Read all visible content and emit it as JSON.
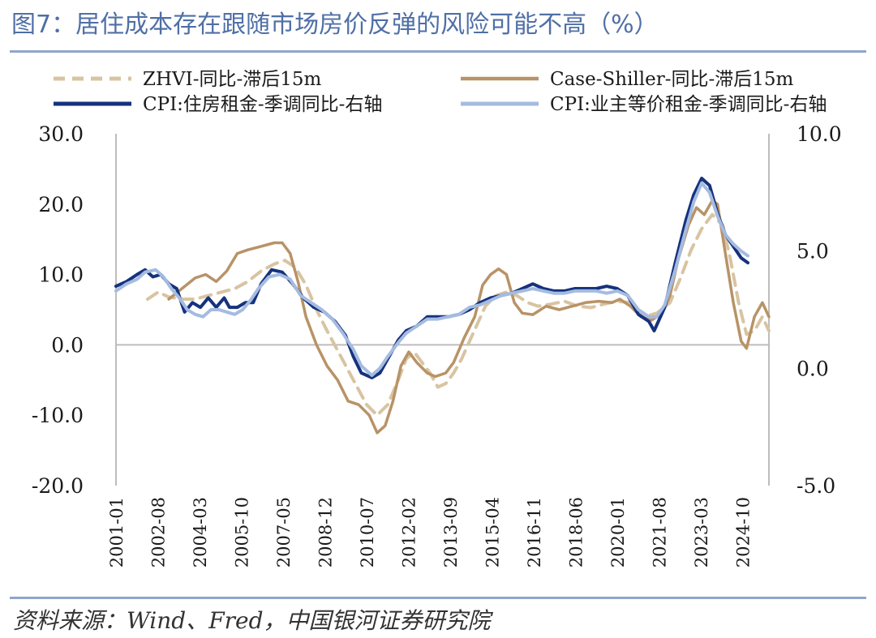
{
  "header": {
    "title": "图7：居住成本存在跟随市场房价反弹的风险可能不高（%）"
  },
  "footer": {
    "source": "资料来源：Wind、Fred，中国银河证券研究院"
  },
  "colors": {
    "title": "#4f6fa6",
    "rule": "#8fa6cc"
  },
  "chart_data": {
    "type": "line",
    "title": "居住成本存在跟随市场房价反弹的风险可能不高（%）",
    "x_ticks": [
      "2001-01",
      "2002-08",
      "2004-03",
      "2005-10",
      "2007-05",
      "2008-12",
      "2010-07",
      "2012-02",
      "2013-09",
      "2015-04",
      "2016-11",
      "2018-06",
      "2020-01",
      "2021-08",
      "2023-03",
      "2024-10"
    ],
    "x_start": 2001.0,
    "x_end": 2025.75,
    "y_left": {
      "min": -20,
      "max": 30,
      "ticks": [
        -20,
        -10,
        0,
        10,
        20,
        30
      ],
      "tick_labels": [
        "-20.0",
        "-10.0",
        "0.0",
        "10.0",
        "20.0",
        "30.0"
      ]
    },
    "y_right": {
      "min": -5,
      "max": 10,
      "ticks": [
        -5,
        0,
        5,
        10
      ],
      "tick_labels": [
        "-5.0",
        "0.0",
        "5.0",
        "10.0"
      ]
    },
    "legend_position": "top",
    "series": [
      {
        "name": "ZHVI-同比-滞后15m",
        "axis": "left",
        "color": "#d8c4a2",
        "dash": "14,9",
        "width": 4,
        "points": [
          [
            2002.2,
            6.5
          ],
          [
            2002.6,
            7.5
          ],
          [
            2003.0,
            6.8
          ],
          [
            2003.5,
            6.5
          ],
          [
            2004.0,
            6.5
          ],
          [
            2004.5,
            7.0
          ],
          [
            2005.0,
            7.5
          ],
          [
            2005.5,
            8.0
          ],
          [
            2006.0,
            9.0
          ],
          [
            2006.5,
            10.5
          ],
          [
            2007.0,
            11.5
          ],
          [
            2007.4,
            12.0
          ],
          [
            2007.8,
            11.0
          ],
          [
            2008.2,
            8.5
          ],
          [
            2008.6,
            5.0
          ],
          [
            2009.0,
            2.0
          ],
          [
            2009.5,
            -1.5
          ],
          [
            2010.0,
            -5.0
          ],
          [
            2010.5,
            -8.5
          ],
          [
            2010.9,
            -10.0
          ],
          [
            2011.3,
            -8.5
          ],
          [
            2011.7,
            -5.0
          ],
          [
            2012.0,
            -2.0
          ],
          [
            2012.3,
            -1.0
          ],
          [
            2012.6,
            -2.5
          ],
          [
            2012.9,
            -4.0
          ],
          [
            2013.2,
            -6.0
          ],
          [
            2013.5,
            -5.5
          ],
          [
            2013.8,
            -4.0
          ],
          [
            2014.1,
            -2.0
          ],
          [
            2014.4,
            0.5
          ],
          [
            2014.7,
            3.0
          ],
          [
            2015.0,
            5.5
          ],
          [
            2015.4,
            7.0
          ],
          [
            2015.8,
            7.5
          ],
          [
            2016.2,
            7.0
          ],
          [
            2016.6,
            6.0
          ],
          [
            2017.0,
            5.5
          ],
          [
            2017.5,
            5.8
          ],
          [
            2018.0,
            6.2
          ],
          [
            2018.5,
            5.5
          ],
          [
            2019.0,
            5.3
          ],
          [
            2019.5,
            5.8
          ],
          [
            2020.0,
            6.2
          ],
          [
            2020.5,
            6.0
          ],
          [
            2021.0,
            4.0
          ],
          [
            2021.5,
            4.5
          ],
          [
            2022.0,
            6.0
          ],
          [
            2022.4,
            9.5
          ],
          [
            2022.8,
            13.5
          ],
          [
            2023.2,
            16.5
          ],
          [
            2023.6,
            18.5
          ],
          [
            2024.0,
            17.0
          ],
          [
            2024.3,
            12.0
          ],
          [
            2024.6,
            6.0
          ],
          [
            2024.9,
            1.5
          ],
          [
            2025.2,
            2.0
          ],
          [
            2025.5,
            4.0
          ],
          [
            2025.75,
            2.0
          ]
        ]
      },
      {
        "name": "Case-Shiller-同比-滞后15m",
        "axis": "left",
        "color": "#b89367",
        "dash": "",
        "width": 3.5,
        "points": [
          [
            2003.0,
            6.5
          ],
          [
            2003.5,
            8.0
          ],
          [
            2004.0,
            9.5
          ],
          [
            2004.4,
            10.0
          ],
          [
            2004.8,
            9.0
          ],
          [
            2005.2,
            10.5
          ],
          [
            2005.6,
            13.0
          ],
          [
            2006.0,
            13.5
          ],
          [
            2006.5,
            14.0
          ],
          [
            2007.0,
            14.5
          ],
          [
            2007.3,
            14.5
          ],
          [
            2007.6,
            13.0
          ],
          [
            2007.9,
            9.0
          ],
          [
            2008.2,
            4.0
          ],
          [
            2008.6,
            0.0
          ],
          [
            2009.0,
            -3.0
          ],
          [
            2009.4,
            -5.0
          ],
          [
            2009.8,
            -8.0
          ],
          [
            2010.2,
            -8.5
          ],
          [
            2010.6,
            -10.0
          ],
          [
            2010.9,
            -12.5
          ],
          [
            2011.2,
            -11.5
          ],
          [
            2011.5,
            -8.0
          ],
          [
            2011.8,
            -3.0
          ],
          [
            2012.1,
            -1.0
          ],
          [
            2012.4,
            -2.5
          ],
          [
            2012.8,
            -4.0
          ],
          [
            2013.1,
            -4.5
          ],
          [
            2013.5,
            -4.0
          ],
          [
            2013.8,
            -2.5
          ],
          [
            2014.2,
            1.0
          ],
          [
            2014.6,
            4.0
          ],
          [
            2014.9,
            8.5
          ],
          [
            2015.2,
            10.0
          ],
          [
            2015.5,
            10.8
          ],
          [
            2015.8,
            10.0
          ],
          [
            2016.1,
            6.0
          ],
          [
            2016.4,
            4.5
          ],
          [
            2016.8,
            4.3
          ],
          [
            2017.3,
            5.5
          ],
          [
            2017.8,
            5.0
          ],
          [
            2018.3,
            5.5
          ],
          [
            2018.8,
            6.0
          ],
          [
            2019.3,
            6.2
          ],
          [
            2019.8,
            6.0
          ],
          [
            2020.1,
            6.5
          ],
          [
            2020.5,
            5.5
          ],
          [
            2020.9,
            4.0
          ],
          [
            2021.3,
            3.5
          ],
          [
            2021.7,
            4.5
          ],
          [
            2022.0,
            7.0
          ],
          [
            2022.3,
            12.0
          ],
          [
            2022.7,
            17.0
          ],
          [
            2023.0,
            19.5
          ],
          [
            2023.3,
            18.5
          ],
          [
            2023.6,
            20.5
          ],
          [
            2023.8,
            20.0
          ],
          [
            2024.1,
            13.0
          ],
          [
            2024.4,
            6.0
          ],
          [
            2024.7,
            0.5
          ],
          [
            2024.9,
            -0.5
          ],
          [
            2025.2,
            4.0
          ],
          [
            2025.5,
            6.0
          ],
          [
            2025.75,
            4.0
          ]
        ]
      },
      {
        "name": "CPI:住房租金-季调同比-右轴",
        "axis": "right",
        "color": "#15327e",
        "dash": "",
        "width": 4,
        "points": [
          [
            2001.0,
            3.5
          ],
          [
            2001.4,
            3.7
          ],
          [
            2001.8,
            4.0
          ],
          [
            2002.1,
            4.2
          ],
          [
            2002.4,
            3.9
          ],
          [
            2002.7,
            4.0
          ],
          [
            2003.0,
            3.6
          ],
          [
            2003.3,
            3.4
          ],
          [
            2003.6,
            2.4
          ],
          [
            2003.9,
            2.8
          ],
          [
            2004.2,
            2.6
          ],
          [
            2004.5,
            3.0
          ],
          [
            2004.8,
            2.6
          ],
          [
            2005.1,
            3.0
          ],
          [
            2005.3,
            2.6
          ],
          [
            2005.6,
            2.6
          ],
          [
            2005.9,
            2.8
          ],
          [
            2006.2,
            2.8
          ],
          [
            2006.5,
            3.6
          ],
          [
            2006.9,
            4.2
          ],
          [
            2007.3,
            4.1
          ],
          [
            2007.7,
            3.6
          ],
          [
            2008.1,
            3.0
          ],
          [
            2008.5,
            2.6
          ],
          [
            2008.9,
            2.4
          ],
          [
            2009.3,
            2.0
          ],
          [
            2009.7,
            1.4
          ],
          [
            2010.0,
            0.5
          ],
          [
            2010.3,
            -0.2
          ],
          [
            2010.7,
            -0.4
          ],
          [
            2011.0,
            -0.2
          ],
          [
            2011.3,
            0.4
          ],
          [
            2011.7,
            1.2
          ],
          [
            2012.0,
            1.6
          ],
          [
            2012.4,
            1.8
          ],
          [
            2012.8,
            2.2
          ],
          [
            2013.2,
            2.2
          ],
          [
            2013.6,
            2.2
          ],
          [
            2014.0,
            2.3
          ],
          [
            2014.4,
            2.5
          ],
          [
            2014.8,
            2.8
          ],
          [
            2015.2,
            3.0
          ],
          [
            2015.6,
            3.1
          ],
          [
            2016.0,
            3.2
          ],
          [
            2016.4,
            3.4
          ],
          [
            2016.8,
            3.6
          ],
          [
            2017.2,
            3.4
          ],
          [
            2017.6,
            3.3
          ],
          [
            2018.0,
            3.3
          ],
          [
            2018.4,
            3.4
          ],
          [
            2018.8,
            3.4
          ],
          [
            2019.2,
            3.4
          ],
          [
            2019.6,
            3.5
          ],
          [
            2020.0,
            3.4
          ],
          [
            2020.4,
            3.1
          ],
          [
            2020.8,
            2.3
          ],
          [
            2021.2,
            2.0
          ],
          [
            2021.4,
            1.6
          ],
          [
            2021.8,
            2.6
          ],
          [
            2022.2,
            4.5
          ],
          [
            2022.6,
            6.3
          ],
          [
            2022.9,
            7.4
          ],
          [
            2023.2,
            8.1
          ],
          [
            2023.5,
            7.8
          ],
          [
            2023.8,
            6.6
          ],
          [
            2024.1,
            5.7
          ],
          [
            2024.4,
            5.2
          ],
          [
            2024.7,
            4.7
          ],
          [
            2024.95,
            4.5
          ]
        ]
      },
      {
        "name": "CPI:业主等价租金-季调同比-右轴",
        "axis": "right",
        "color": "#a5bbe0",
        "dash": "",
        "width": 4,
        "points": [
          [
            2001.0,
            3.3
          ],
          [
            2001.4,
            3.6
          ],
          [
            2001.8,
            3.8
          ],
          [
            2002.1,
            4.1
          ],
          [
            2002.5,
            4.2
          ],
          [
            2002.8,
            3.9
          ],
          [
            2003.1,
            3.4
          ],
          [
            2003.4,
            3.0
          ],
          [
            2003.7,
            2.5
          ],
          [
            2004.0,
            2.3
          ],
          [
            2004.3,
            2.2
          ],
          [
            2004.6,
            2.5
          ],
          [
            2004.9,
            2.5
          ],
          [
            2005.2,
            2.4
          ],
          [
            2005.5,
            2.3
          ],
          [
            2005.8,
            2.5
          ],
          [
            2006.1,
            2.9
          ],
          [
            2006.4,
            3.4
          ],
          [
            2006.8,
            3.9
          ],
          [
            2007.2,
            4.0
          ],
          [
            2007.6,
            3.8
          ],
          [
            2008.0,
            3.1
          ],
          [
            2008.4,
            2.8
          ],
          [
            2008.8,
            2.5
          ],
          [
            2009.2,
            2.1
          ],
          [
            2009.6,
            1.5
          ],
          [
            2010.0,
            0.8
          ],
          [
            2010.3,
            0.1
          ],
          [
            2010.7,
            -0.3
          ],
          [
            2011.0,
            0.0
          ],
          [
            2011.3,
            0.5
          ],
          [
            2011.7,
            1.1
          ],
          [
            2012.0,
            1.5
          ],
          [
            2012.4,
            1.8
          ],
          [
            2012.8,
            2.1
          ],
          [
            2013.2,
            2.1
          ],
          [
            2013.6,
            2.2
          ],
          [
            2014.0,
            2.3
          ],
          [
            2014.4,
            2.6
          ],
          [
            2014.8,
            2.7
          ],
          [
            2015.2,
            2.9
          ],
          [
            2015.6,
            3.1
          ],
          [
            2016.0,
            3.2
          ],
          [
            2016.4,
            3.3
          ],
          [
            2016.8,
            3.4
          ],
          [
            2017.2,
            3.3
          ],
          [
            2017.6,
            3.2
          ],
          [
            2018.0,
            3.2
          ],
          [
            2018.4,
            3.3
          ],
          [
            2018.8,
            3.3
          ],
          [
            2019.2,
            3.3
          ],
          [
            2019.6,
            3.2
          ],
          [
            2020.0,
            3.3
          ],
          [
            2020.4,
            3.1
          ],
          [
            2020.8,
            2.5
          ],
          [
            2021.2,
            2.2
          ],
          [
            2021.5,
            2.2
          ],
          [
            2021.8,
            2.7
          ],
          [
            2022.2,
            4.2
          ],
          [
            2022.6,
            5.9
          ],
          [
            2022.9,
            7.1
          ],
          [
            2023.2,
            7.9
          ],
          [
            2023.5,
            7.5
          ],
          [
            2023.8,
            6.5
          ],
          [
            2024.1,
            5.7
          ],
          [
            2024.4,
            5.3
          ],
          [
            2024.7,
            5.0
          ],
          [
            2024.95,
            4.8
          ]
        ]
      }
    ]
  }
}
